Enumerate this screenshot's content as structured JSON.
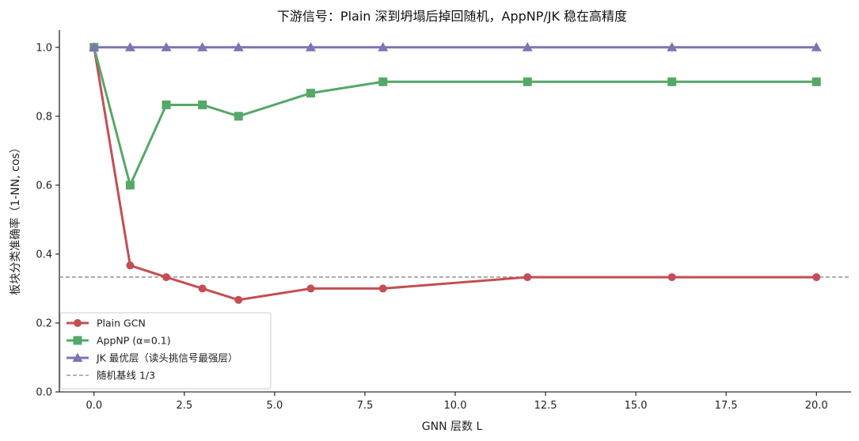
{
  "chart_data": {
    "type": "line",
    "title": "下游信号：Plain 深到坍塌后掉回随机，AppNP/JK 稳在高精度",
    "xlabel": "GNN 层数 L",
    "ylabel": "板块分类准确率（1-NN, cos）",
    "xlim": [
      -0.96,
      20.96
    ],
    "ylim": [
      0.0,
      1.05
    ],
    "x_ticks": [
      0.0,
      2.5,
      5.0,
      7.5,
      10.0,
      12.5,
      15.0,
      17.5,
      20.0
    ],
    "x_tick_labels": [
      "0.0",
      "2.5",
      "5.0",
      "7.5",
      "10.0",
      "12.5",
      "15.0",
      "17.5",
      "20.0"
    ],
    "y_ticks": [
      0.0,
      0.2,
      0.4,
      0.6,
      0.8,
      1.0
    ],
    "y_tick_labels": [
      "0.0",
      "0.2",
      "0.4",
      "0.6",
      "0.8",
      "1.0"
    ],
    "grid": false,
    "legend_position": "lower-left",
    "series": [
      {
        "name": "Plain GCN",
        "color": "#c44e52",
        "marker": "circle",
        "x": [
          0,
          1,
          2,
          3,
          4,
          6,
          8,
          12,
          16,
          20
        ],
        "values": [
          1.0,
          0.367,
          0.333,
          0.3,
          0.267,
          0.3,
          0.3,
          0.333,
          0.333,
          0.333
        ]
      },
      {
        "name": "AppNP (α=0.1)",
        "color": "#55a868",
        "marker": "square",
        "x": [
          0,
          1,
          2,
          3,
          4,
          6,
          8,
          12,
          16,
          20
        ],
        "values": [
          1.0,
          0.6,
          0.833,
          0.833,
          0.8,
          0.867,
          0.9,
          0.9,
          0.9,
          0.9
        ]
      },
      {
        "name": "JK 最优层（读头挑信号最强层）",
        "color": "#8172b2",
        "marker": "triangle",
        "x": [
          0,
          1,
          2,
          3,
          4,
          6,
          8,
          12,
          16,
          20
        ],
        "values": [
          1.0,
          1.0,
          1.0,
          1.0,
          1.0,
          1.0,
          1.0,
          1.0,
          1.0,
          1.0
        ]
      }
    ],
    "baseline": {
      "name": "随机基线 1/3",
      "value": 0.3333,
      "color": "#888888",
      "style": "dashed"
    }
  }
}
